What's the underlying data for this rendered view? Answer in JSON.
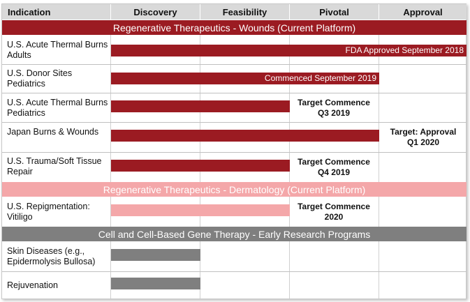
{
  "headers": [
    "Indication",
    "Discovery",
    "Feasibility",
    "Pivotal",
    "Approval"
  ],
  "colors": {
    "wounds": "#9b1b22",
    "dermatology": "#f4a7a9",
    "gene_therapy": "#7f7f7f",
    "header_bg": "#d9d9d9"
  },
  "sections": {
    "wounds": "Regenerative Therapeutics - Wounds (Current Platform)",
    "dermatology": "Regenerative Therapeutics - Dermatology (Current Platform)",
    "gene_therapy": "Cell and Cell-Based Gene Therapy - Early Research Programs"
  },
  "rows": [
    {
      "indication": "U.S. Acute Thermal Burns Adults",
      "progress_phases": 4.0,
      "bar_text": "FDA Approved September 2018",
      "note": ""
    },
    {
      "indication": "U.S. Donor Sites Pediatrics",
      "progress_phases": 3.0,
      "bar_text": "Commenced September 2019",
      "note": ""
    },
    {
      "indication": "U.S. Acute Thermal Burns Pediatrics",
      "progress_phases": 2.0,
      "bar_text": "",
      "note_line1": "Target Commence",
      "note_line2": "Q3 2019"
    },
    {
      "indication": "Japan Burns & Wounds",
      "progress_phases": 3.0,
      "bar_text": "",
      "note_line1": "Target: Approval",
      "note_line2": "Q1 2020"
    },
    {
      "indication": "U.S. Trauma/Soft Tissue Repair",
      "progress_phases": 2.0,
      "bar_text": "",
      "note_line1": "Target Commence",
      "note_line2": "Q4 2019"
    },
    {
      "indication": "U.S. Repigmentation: Vitiligo",
      "progress_phases": 2.0,
      "bar_text": "",
      "note_line1": "Target Commence",
      "note_line2": "2020"
    },
    {
      "indication": "Skin Diseases (e.g., Epidermolysis Bullosa)",
      "progress_phases": 1.0,
      "bar_text": "",
      "note": ""
    },
    {
      "indication": "Rejuvenation",
      "progress_phases": 1.0,
      "bar_text": "",
      "note": ""
    }
  ]
}
